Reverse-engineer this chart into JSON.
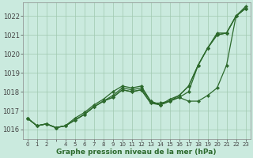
{
  "title": "Graphe pression niveau de la mer (hPa)",
  "bg_color": "#caeade",
  "line_color": "#2d6a2d",
  "grid_color": "#a0c8b0",
  "ylim": [
    1015.5,
    1022.7
  ],
  "yticks": [
    1016,
    1017,
    1018,
    1019,
    1020,
    1021,
    1022
  ],
  "xlim": [
    -0.5,
    23.5
  ],
  "x_skip": [
    3
  ],
  "lines": [
    [
      1016.6,
      1016.2,
      1016.3,
      1016.1,
      1016.2,
      1016.5,
      1016.8,
      1017.2,
      1017.5,
      1017.7,
      1018.1,
      1018.0,
      1018.1,
      1017.4,
      1017.4,
      1017.5,
      1017.7,
      1017.5,
      1017.5,
      1017.8,
      1018.2,
      1019.4,
      1022.0,
      1022.5
    ],
    [
      1016.6,
      1016.2,
      1016.3,
      1016.1,
      1016.2,
      1016.5,
      1016.8,
      1017.2,
      1017.5,
      1017.7,
      1018.1,
      1018.0,
      1018.1,
      1017.4,
      1017.3,
      1017.5,
      1017.7,
      1018.0,
      1019.4,
      1020.3,
      1021.0,
      1021.1,
      1022.0,
      1022.4
    ],
    [
      1016.6,
      1016.2,
      1016.3,
      1016.1,
      1016.2,
      1016.5,
      1016.8,
      1017.2,
      1017.5,
      1017.8,
      1018.2,
      1018.1,
      1018.2,
      1017.5,
      1017.3,
      1017.5,
      1017.8,
      1018.3,
      1019.4,
      1020.3,
      1021.0,
      1021.1,
      1022.0,
      1022.4
    ],
    [
      1016.6,
      1016.2,
      1016.3,
      1016.1,
      1016.2,
      1016.6,
      1016.9,
      1017.3,
      1017.6,
      1018.0,
      1018.3,
      1018.2,
      1018.3,
      1017.5,
      1017.3,
      1017.6,
      1017.8,
      1018.3,
      1019.4,
      1020.3,
      1021.1,
      1021.1,
      1022.0,
      1022.4
    ]
  ]
}
